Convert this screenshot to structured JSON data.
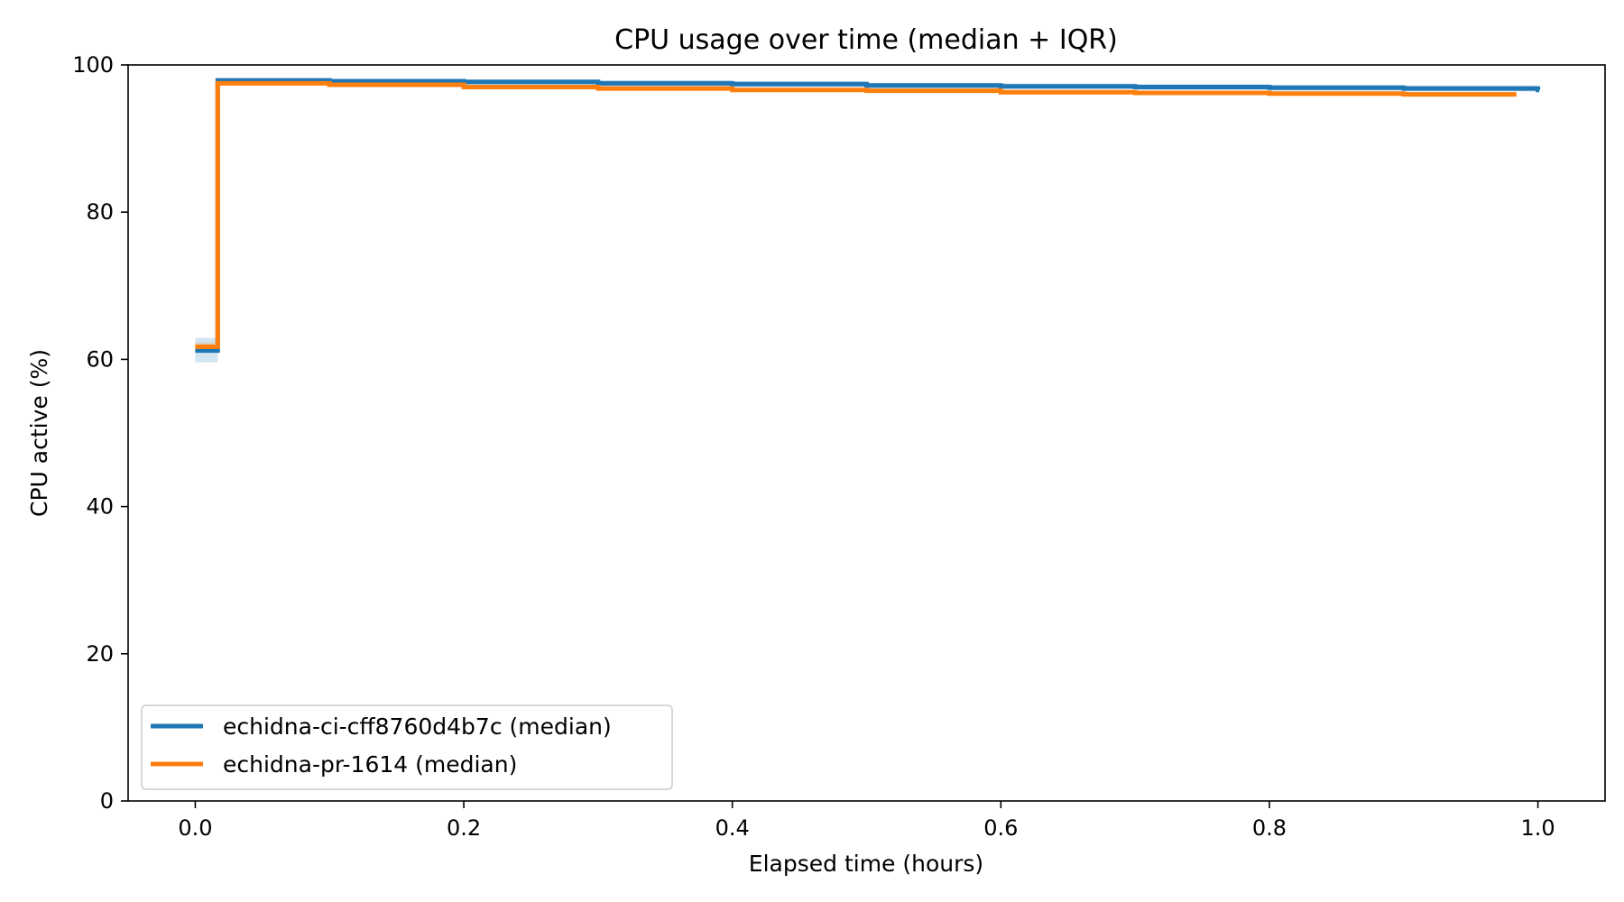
{
  "chart_data": {
    "type": "line",
    "title": "CPU usage over time (median + IQR)",
    "xlabel": "Elapsed time (hours)",
    "ylabel": "CPU active (%)",
    "xlim": [
      -0.05,
      1.05
    ],
    "ylim": [
      0,
      100
    ],
    "xticks": [
      0.0,
      0.2,
      0.4,
      0.6,
      0.8,
      1.0
    ],
    "xtick_labels": [
      "0.0",
      "0.2",
      "0.4",
      "0.6",
      "0.8",
      "1.0"
    ],
    "yticks": [
      0,
      20,
      40,
      60,
      80,
      100
    ],
    "ytick_labels": [
      "0",
      "20",
      "40",
      "60",
      "80",
      "100"
    ],
    "grid": false,
    "legend_position": "lower-left",
    "step": "post",
    "series": [
      {
        "name": "echidna-ci-cff8760d4b7c (median)",
        "color": "#1f77b4",
        "x": [
          0.0,
          0.0167,
          0.1,
          0.2,
          0.3,
          0.4,
          0.5,
          0.6,
          0.7,
          0.8,
          0.9,
          1.0
        ],
        "y": [
          61.2,
          97.9,
          97.8,
          97.7,
          97.5,
          97.4,
          97.2,
          97.1,
          97.0,
          96.9,
          96.8,
          96.6
        ],
        "iqr_low": [
          59.6,
          97.5,
          97.4,
          97.3,
          97.1,
          97.0,
          96.8,
          96.7,
          96.6,
          96.5,
          96.4,
          96.3
        ],
        "iqr_high": [
          62.9,
          98.2,
          98.1,
          98.0,
          97.9,
          97.8,
          97.6,
          97.5,
          97.4,
          97.3,
          97.2,
          97.0
        ]
      },
      {
        "name": "echidna-pr-1614 (median)",
        "color": "#ff7f0e",
        "x": [
          0.0,
          0.0167,
          0.1,
          0.2,
          0.3,
          0.4,
          0.5,
          0.6,
          0.7,
          0.8,
          0.9,
          0.983
        ],
        "y": [
          61.7,
          97.5,
          97.3,
          97.0,
          96.8,
          96.6,
          96.5,
          96.3,
          96.2,
          96.1,
          96.0,
          96.0
        ],
        "iqr_low": [
          61.1,
          97.2,
          97.0,
          96.7,
          96.5,
          96.3,
          96.2,
          96.0,
          95.9,
          95.8,
          95.7,
          95.7
        ],
        "iqr_high": [
          62.3,
          97.8,
          97.6,
          97.3,
          97.1,
          96.9,
          96.8,
          96.6,
          96.5,
          96.4,
          96.3,
          96.3
        ]
      }
    ]
  }
}
